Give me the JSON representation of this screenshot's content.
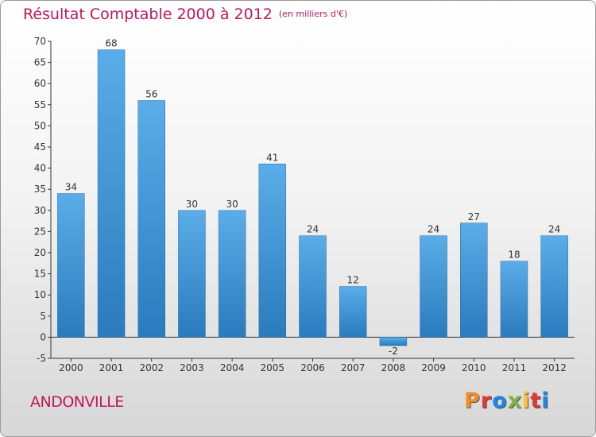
{
  "title": "Résultat Comptable 2000 à 2012",
  "subtitle": "(en milliers d'€)",
  "town": "ANDONVILLE",
  "logo": {
    "text": "Proxiti",
    "colors": [
      "#f28c28",
      "#e53935",
      "#1e88e5",
      "#7cb342",
      "#fbc02d",
      "#e53935",
      "#1e88e5"
    ]
  },
  "colors": {
    "title": "#c2185b",
    "bar_top": "#5aade8",
    "bar_bottom": "#2a7bbd"
  },
  "chart_data": {
    "type": "bar",
    "title": "Résultat Comptable 2000 à 2012",
    "categories": [
      "2000",
      "2001",
      "2002",
      "2003",
      "2004",
      "2005",
      "2006",
      "2007",
      "2008",
      "2009",
      "2010",
      "2011",
      "2012"
    ],
    "values": [
      34,
      68,
      56,
      30,
      30,
      41,
      24,
      12,
      -2,
      24,
      27,
      18,
      24
    ],
    "ylim": [
      -5,
      70
    ],
    "yticks": [
      -5,
      0,
      5,
      10,
      15,
      20,
      25,
      30,
      35,
      40,
      45,
      50,
      55,
      60,
      65,
      70
    ],
    "grid": false,
    "legend": "none"
  }
}
